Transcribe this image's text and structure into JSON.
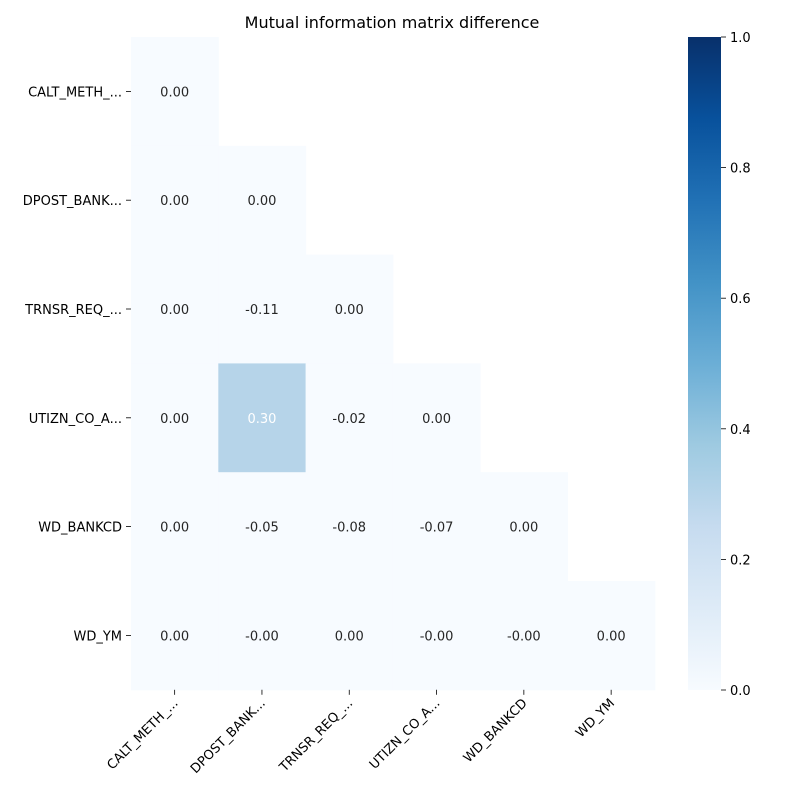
{
  "chart_data": {
    "type": "heatmap",
    "title": "Mutual information matrix difference",
    "xlabel": "",
    "ylabel": "",
    "row_labels": [
      "CALT_METH_...",
      "DPOST_BANK...",
      "TRNSR_REQ_...",
      "UTIZN_CO_A...",
      "WD_BANKCD",
      "WD_YM"
    ],
    "col_labels": [
      "CALT_METH_...",
      "DPOST_BANK...",
      "TRNSR_REQ_...",
      "UTIZN_CO_A...",
      "WD_BANKCD",
      "WD_YM"
    ],
    "mask": "upper-triangle",
    "values": [
      [
        0.0,
        null,
        null,
        null,
        null,
        null
      ],
      [
        0.0,
        0.0,
        null,
        null,
        null,
        null
      ],
      [
        0.0,
        -0.11,
        0.0,
        null,
        null,
        null
      ],
      [
        0.0,
        0.3,
        -0.02,
        0.0,
        null,
        null
      ],
      [
        0.0,
        -0.05,
        -0.08,
        -0.07,
        0.0,
        null
      ],
      [
        0.0,
        -0.0,
        0.0,
        -0.0,
        -0.0,
        0.0
      ]
    ],
    "cell_text": [
      [
        "0.00",
        null,
        null,
        null,
        null,
        null
      ],
      [
        "0.00",
        "0.00",
        null,
        null,
        null,
        null
      ],
      [
        "0.00",
        "-0.11",
        "0.00",
        null,
        null,
        null
      ],
      [
        "0.00",
        "0.30",
        "-0.02",
        "0.00",
        null,
        null
      ],
      [
        "0.00",
        "-0.05",
        "-0.08",
        "-0.07",
        "0.00",
        null
      ],
      [
        "0.00",
        "-0.00",
        "0.00",
        "-0.00",
        "-0.00",
        "0.00"
      ]
    ],
    "colorbar": {
      "colormap": "Blues",
      "range": [
        0,
        1
      ],
      "ticks": [
        "0.0",
        "0.2",
        "0.4",
        "0.6",
        "0.8",
        "1.0"
      ]
    },
    "colors": {
      "low": "#f7fbff",
      "high": "#08306b"
    }
  }
}
